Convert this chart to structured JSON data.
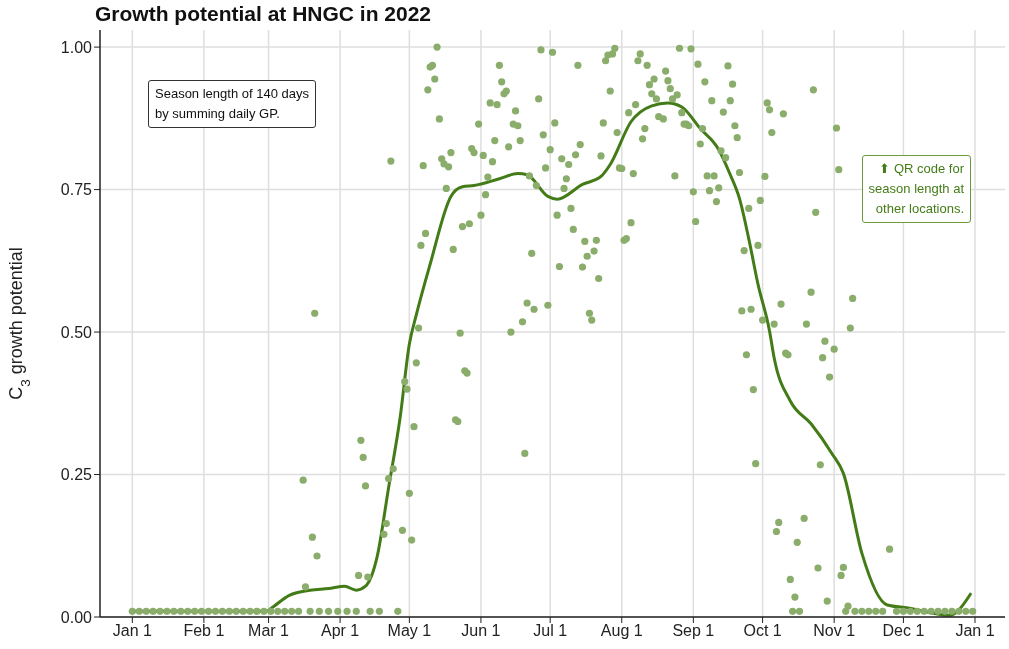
{
  "chart_data": {
    "type": "scatter",
    "title": "Growth potential at HNGC in 2022",
    "ylabel": "C$_{3}$ growth potential",
    "xlim": [
      "2021-12-18",
      "2023-01-14"
    ],
    "xticks": [
      {
        "value": "2022-01-01",
        "label": "Jan 1"
      },
      {
        "value": "2022-02-01",
        "label": "Feb 1"
      },
      {
        "value": "2022-03-01",
        "label": "Mar 1"
      },
      {
        "value": "2022-04-01",
        "label": "Apr 1"
      },
      {
        "value": "2022-05-01",
        "label": "May 1"
      },
      {
        "value": "2022-06-01",
        "label": "Jun 1"
      },
      {
        "value": "2022-07-01",
        "label": "Jul 1"
      },
      {
        "value": "2022-08-01",
        "label": "Aug 1"
      },
      {
        "value": "2022-09-01",
        "label": "Sep 1"
      },
      {
        "value": "2022-10-01",
        "label": "Oct 1"
      },
      {
        "value": "2022-11-01",
        "label": "Nov 1"
      },
      {
        "value": "2022-12-01",
        "label": "Dec 1"
      },
      {
        "value": "2023-01-01",
        "label": "Jan 1"
      }
    ],
    "ylim": [
      0,
      1.03
    ],
    "yticks": [
      {
        "value": 0,
        "label": "0.00"
      },
      {
        "value": 0.25,
        "label": "0.25"
      },
      {
        "value": 0.5,
        "label": "0.50"
      },
      {
        "value": 0.75,
        "label": "0.75"
      },
      {
        "value": 1,
        "label": "1.00"
      }
    ],
    "grid": true,
    "marker": "circle",
    "annotations": [
      "Season length of 140 days\nby summing daily GP.",
      "⬆ QR code for\nseason length at\nother locations."
    ],
    "series": [
      {
        "color": "#8aad6b",
        "x": [
          "2022-01-01",
          "2022-01-04",
          "2022-01-07",
          "2022-01-10",
          "2022-01-13",
          "2022-01-16",
          "2022-01-19",
          "2022-01-22",
          "2022-01-25",
          "2022-01-28",
          "2022-01-31",
          "2022-02-03",
          "2022-02-06",
          "2022-02-09",
          "2022-02-12",
          "2022-02-15",
          "2022-02-18",
          "2022-02-21",
          "2022-02-24",
          "2022-02-27",
          "2022-03-02",
          "2022-03-05",
          "2022-03-08",
          "2022-03-11",
          "2022-03-14",
          "2022-03-16",
          "2022-03-17",
          "2022-03-19",
          "2022-03-20",
          "2022-03-21",
          "2022-03-22",
          "2022-03-23",
          "2022-03-27",
          "2022-03-31",
          "2022-04-04",
          "2022-04-08",
          "2022-04-09",
          "2022-04-10",
          "2022-04-11",
          "2022-04-12",
          "2022-04-13",
          "2022-04-14",
          "2022-04-18",
          "2022-04-20",
          "2022-04-21",
          "2022-04-22",
          "2022-04-23",
          "2022-04-24",
          "2022-04-26",
          "2022-04-28",
          "2022-04-29",
          "2022-04-30",
          "2022-05-01",
          "2022-05-02",
          "2022-05-03",
          "2022-05-04",
          "2022-05-05",
          "2022-05-06",
          "2022-05-07",
          "2022-05-08",
          "2022-05-09",
          "2022-05-10",
          "2022-05-11",
          "2022-05-12",
          "2022-05-13",
          "2022-05-14",
          "2022-05-15",
          "2022-05-16",
          "2022-05-17",
          "2022-05-18",
          "2022-05-19",
          "2022-05-20",
          "2022-05-21",
          "2022-05-22",
          "2022-05-23",
          "2022-05-24",
          "2022-05-25",
          "2022-05-26",
          "2022-05-27",
          "2022-05-28",
          "2022-05-29",
          "2022-05-31",
          "2022-06-01",
          "2022-06-02",
          "2022-06-03",
          "2022-06-04",
          "2022-06-05",
          "2022-06-06",
          "2022-06-07",
          "2022-06-08",
          "2022-06-09",
          "2022-06-10",
          "2022-06-11",
          "2022-06-12",
          "2022-06-13",
          "2022-06-14",
          "2022-06-15",
          "2022-06-16",
          "2022-06-17",
          "2022-06-18",
          "2022-06-19",
          "2022-06-20",
          "2022-06-21",
          "2022-06-22",
          "2022-06-23",
          "2022-06-24",
          "2022-06-25",
          "2022-06-26",
          "2022-06-27",
          "2022-06-28",
          "2022-06-29",
          "2022-06-30",
          "2022-07-01",
          "2022-07-02",
          "2022-07-03",
          "2022-07-04",
          "2022-07-05",
          "2022-07-06",
          "2022-07-07",
          "2022-07-08",
          "2022-07-09",
          "2022-07-10",
          "2022-07-11",
          "2022-07-12",
          "2022-07-13",
          "2022-07-14",
          "2022-07-15",
          "2022-07-16",
          "2022-07-17",
          "2022-07-18",
          "2022-07-19",
          "2022-07-20",
          "2022-07-21",
          "2022-07-22",
          "2022-07-23",
          "2022-07-24",
          "2022-07-25",
          "2022-07-26",
          "2022-07-27",
          "2022-07-28",
          "2022-07-29",
          "2022-07-30",
          "2022-07-31",
          "2022-08-01",
          "2022-08-02",
          "2022-08-03",
          "2022-08-04",
          "2022-08-05",
          "2022-08-06",
          "2022-08-07",
          "2022-08-08",
          "2022-08-09",
          "2022-08-10",
          "2022-08-11",
          "2022-08-12",
          "2022-08-13",
          "2022-08-14",
          "2022-08-15",
          "2022-08-16",
          "2022-08-17",
          "2022-08-19",
          "2022-08-20",
          "2022-08-21",
          "2022-08-22",
          "2022-08-23",
          "2022-08-24",
          "2022-08-25",
          "2022-08-26",
          "2022-08-27",
          "2022-08-28",
          "2022-08-29",
          "2022-08-30",
          "2022-08-31",
          "2022-09-01",
          "2022-09-02",
          "2022-09-03",
          "2022-09-04",
          "2022-09-05",
          "2022-09-06",
          "2022-09-07",
          "2022-09-08",
          "2022-09-09",
          "2022-09-10",
          "2022-09-11",
          "2022-09-12",
          "2022-09-13",
          "2022-09-14",
          "2022-09-15",
          "2022-09-16",
          "2022-09-17",
          "2022-09-18",
          "2022-09-19",
          "2022-09-20",
          "2022-09-21",
          "2022-09-22",
          "2022-09-23",
          "2022-09-24",
          "2022-09-25",
          "2022-09-26",
          "2022-09-27",
          "2022-09-28",
          "2022-09-29",
          "2022-09-30",
          "2022-10-01",
          "2022-10-02",
          "2022-10-03",
          "2022-10-04",
          "2022-10-05",
          "2022-10-06",
          "2022-10-07",
          "2022-10-08",
          "2022-10-09",
          "2022-10-10",
          "2022-10-11",
          "2022-10-12",
          "2022-10-13",
          "2022-10-14",
          "2022-10-15",
          "2022-10-16",
          "2022-10-17",
          "2022-10-19",
          "2022-10-20",
          "2022-10-22",
          "2022-10-23",
          "2022-10-24",
          "2022-10-25",
          "2022-10-26",
          "2022-10-27",
          "2022-10-28",
          "2022-10-29",
          "2022-10-30",
          "2022-11-01",
          "2022-11-02",
          "2022-11-03",
          "2022-11-04",
          "2022-11-05",
          "2022-11-06",
          "2022-11-07",
          "2022-11-08",
          "2022-11-09",
          "2022-11-10",
          "2022-11-13",
          "2022-11-16",
          "2022-11-19",
          "2022-11-22",
          "2022-11-25",
          "2022-11-28",
          "2022-12-01",
          "2022-12-04",
          "2022-12-07",
          "2022-12-10",
          "2022-12-13",
          "2022-12-16",
          "2022-12-19",
          "2022-12-22",
          "2022-12-25",
          "2022-12-28",
          "2022-12-31"
        ],
        "values": [
          0.01,
          0.01,
          0.01,
          0.01,
          0.01,
          0.01,
          0.01,
          0.01,
          0.01,
          0.01,
          0.01,
          0.01,
          0.01,
          0.01,
          0.01,
          0.01,
          0.01,
          0.01,
          0.01,
          0.01,
          0.01,
          0.01,
          0.01,
          0.01,
          0.01,
          0.24,
          0.053,
          0.01,
          0.14,
          0.533,
          0.107,
          0.01,
          0.01,
          0.01,
          0.01,
          0.01,
          0.073,
          0.31,
          0.28,
          0.23,
          0.07,
          0.01,
          0.01,
          0.145,
          0.164,
          0.243,
          0.8,
          0.26,
          0.01,
          0.152,
          0.413,
          0.4,
          0.217,
          0.135,
          0.334,
          0.446,
          0.507,
          0.652,
          0.792,
          0.673,
          0.925,
          0.965,
          0.968,
          0.944,
          1.0,
          0.874,
          0.804,
          0.795,
          0.752,
          0.79,
          0.815,
          0.645,
          0.346,
          0.343,
          0.498,
          0.685,
          0.432,
          0.428,
          0.69,
          0.822,
          0.815,
          0.865,
          0.705,
          0.81,
          0.741,
          0.772,
          0.902,
          0.799,
          0.836,
          0.899,
          0.968,
          0.939,
          0.918,
          0.923,
          0.825,
          0.5,
          0.865,
          0.888,
          0.862,
          0.836,
          0.518,
          0.287,
          0.551,
          0.774,
          0.638,
          0.54,
          0.757,
          0.909,
          0.995,
          0.846,
          0.788,
          0.547,
          0.82,
          0.991,
          0.867,
          0.705,
          0.615,
          0.804,
          0.752,
          0.769,
          0.794,
          0.717,
          0.68,
          0.811,
          0.968,
          0.829,
          0.614,
          0.659,
          0.633,
          0.533,
          0.521,
          0.642,
          0.661,
          0.594,
          0.809,
          0.867,
          0.976,
          0.986,
          0.923,
          0.988,
          0.998,
          0.85,
          0.788,
          0.787,
          0.661,
          0.664,
          0.885,
          0.692,
          0.778,
          0.899,
          0.976,
          0.988,
          0.839,
          0.857,
          0.968,
          0.934,
          0.918,
          0.944,
          0.909,
          0.878,
          0.874,
          0.958,
          0.941,
          0.927,
          0.909,
          0.774,
          0.916,
          0.998,
          0.885,
          0.865,
          0.865,
          0.862,
          0.997,
          0.746,
          0.694,
          0.97,
          0.83,
          0.857,
          0.939,
          0.774,
          0.748,
          0.906,
          0.774,
          0.729,
          0.753,
          0.818,
          0.886,
          0.806,
          0.967,
          0.906,
          0.935,
          0.862,
          0.841,
          0.78,
          0.537,
          0.643,
          0.46,
          0.717,
          0.54,
          0.399,
          0.269,
          0.652,
          0.731,
          0.521,
          0.773,
          0.902,
          0.89,
          0.85,
          0.514,
          0.15,
          0.166,
          0.549,
          0.883,
          0.463,
          0.46,
          0.066,
          0.01,
          0.035,
          0.131,
          0.01,
          0.173,
          0.514,
          0.57,
          0.925,
          0.71,
          0.086,
          0.267,
          0.455,
          0.484,
          0.028,
          0.421,
          0.47,
          0.858,
          0.785,
          0.073,
          0.087,
          0.01,
          0.019,
          0.507,
          0.559,
          0.01,
          0.01,
          0.01,
          0.01,
          0.01,
          0.119,
          0.01,
          0.01,
          0.01,
          0.01,
          0.01,
          0.01,
          0.01,
          0.01,
          0.01,
          0.01,
          0.01,
          0.01
        ]
      },
      {
        "type": "line",
        "marker": "none",
        "color": "#437c17",
        "x": [
          "2022-01-01",
          "2022-02-28",
          "2022-03-02",
          "2022-03-10",
          "2022-03-19",
          "2022-03-27",
          "2022-04-03",
          "2022-04-08",
          "2022-04-12",
          "2022-04-17",
          "2022-04-22",
          "2022-04-27",
          "2022-05-01",
          "2022-05-04",
          "2022-05-10",
          "2022-05-19",
          "2022-05-24",
          "2022-05-29",
          "2022-06-09",
          "2022-06-17",
          "2022-06-21",
          "2022-06-30",
          "2022-07-04",
          "2022-07-15",
          "2022-07-23",
          "2022-07-27",
          "2022-08-05",
          "2022-08-14",
          "2022-08-21",
          "2022-08-27",
          "2022-09-04",
          "2022-09-12",
          "2022-09-17",
          "2022-09-21",
          "2022-09-25",
          "2022-09-29",
          "2022-10-04",
          "2022-10-06",
          "2022-10-13",
          "2022-10-22",
          "2022-10-31",
          "2022-11-05",
          "2022-11-13",
          "2022-11-24",
          "2022-12-03",
          "2022-12-21",
          "2022-12-30"
        ],
        "values": [
          0.01,
          0.01,
          0.015,
          0.038,
          0.047,
          0.05,
          0.054,
          0.047,
          0.054,
          0.105,
          0.227,
          0.35,
          0.479,
          0.53,
          0.619,
          0.738,
          0.755,
          0.757,
          0.769,
          0.778,
          0.776,
          0.738,
          0.733,
          0.759,
          0.773,
          0.794,
          0.869,
          0.897,
          0.902,
          0.895,
          0.857,
          0.82,
          0.776,
          0.734,
          0.664,
          0.584,
          0.502,
          0.455,
          0.379,
          0.339,
          0.287,
          0.252,
          0.112,
          0.021,
          0.016,
          0.003,
          0.04
        ]
      }
    ]
  }
}
